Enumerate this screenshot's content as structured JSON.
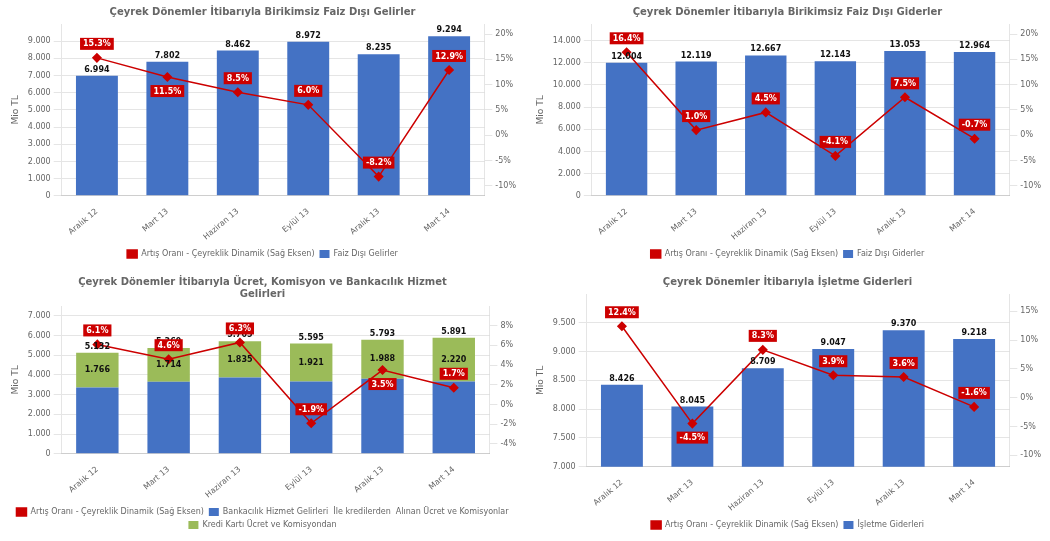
{
  "chart_data": [
    {
      "type": "bar",
      "title": "Çeyrek Dönemler İtibarıyla Birikimsiz Faiz Dışı Gelirler",
      "categories": [
        "Aralık 12",
        "Mart 13",
        "Haziran 13",
        "Eylül 13",
        "Aralık 13",
        "Mart 14"
      ],
      "series": [
        {
          "name": "Faiz Dışı Gelirler",
          "type": "bar",
          "color": "#4472C4",
          "values": [
            6994,
            7802,
            8462,
            8972,
            8235,
            9294
          ],
          "data_labels": true,
          "value_labels": [
            "6.994",
            "7.802",
            "8.462",
            "8.972",
            "8.235",
            "9.294"
          ]
        },
        {
          "name": "Artış Oranı - Çeyreklik Dinamik (Sağ Eksen)",
          "type": "line",
          "axis": "y2",
          "color": "#CC0000",
          "marker": "diamond",
          "values": [
            15.3,
            11.5,
            8.5,
            6.0,
            -8.2,
            12.9
          ],
          "data_labels": true,
          "value_labels": [
            "15.3%",
            "11.5%",
            "8.5%",
            "6.0%",
            "-8.2%",
            "12.9%"
          ]
        }
      ],
      "ylabel": "Mio TL",
      "ylim": [
        0,
        10000
      ],
      "yticks": [
        0,
        {
          "value": 1000,
          "label": "1.000"
        },
        {
          "value": 2000,
          "label": "2.000"
        },
        {
          "value": 3000,
          "label": "3.000"
        },
        {
          "value": 4000,
          "label": "4.000"
        },
        {
          "value": 5000,
          "label": "5.000"
        },
        {
          "value": 6000,
          "label": "6.000"
        },
        {
          "value": 7000,
          "label": "7.000"
        },
        {
          "value": 8000,
          "label": "8.000"
        },
        {
          "value": 9000,
          "label": "9.000"
        }
      ],
      "y2lim": [
        -12,
        22
      ],
      "y2ticks": [
        {
          "value": -10,
          "label": "-10%"
        },
        {
          "value": -5,
          "label": "-5%"
        },
        {
          "value": 0,
          "label": "0%"
        },
        {
          "value": 5,
          "label": "5%"
        },
        {
          "value": 10,
          "label": "10%"
        },
        {
          "value": 15,
          "label": "15%"
        },
        {
          "value": 20,
          "label": "20%"
        }
      ],
      "grid": "y",
      "legend": "bottom"
    },
    {
      "type": "bar",
      "title": "Çeyrek Dönemler İtibarıyla Birikimsiz Faiz Dışı Giderler",
      "categories": [
        "Aralık 12",
        "Mart 13",
        "Haziran 13",
        "Eylül 13",
        "Aralık 13",
        "Mart 14"
      ],
      "series": [
        {
          "name": "Faiz Dışı Giderler",
          "type": "bar",
          "color": "#4472C4",
          "values": [
            12004,
            12119,
            12667,
            12143,
            13053,
            12964
          ],
          "data_labels": true,
          "value_labels": [
            "12.004",
            "12.119",
            "12.667",
            "12.143",
            "13.053",
            "12.964"
          ]
        },
        {
          "name": "Artış Oranı - Çeyreklik Dinamik (Sağ Eksen)",
          "type": "line",
          "axis": "y2",
          "color": "#CC0000",
          "marker": "diamond",
          "values": [
            16.4,
            1.0,
            4.5,
            -4.1,
            7.5,
            -0.7
          ],
          "data_labels": true,
          "value_labels": [
            "16.4%",
            "1.0%",
            "4.5%",
            "-4.1%",
            "7.5%",
            "-0.7%"
          ]
        }
      ],
      "ylabel": "Mio TL",
      "ylim": [
        0,
        15500
      ],
      "yticks": [
        0,
        {
          "value": 2000,
          "label": "2.000"
        },
        {
          "value": 4000,
          "label": "4.000"
        },
        {
          "value": 6000,
          "label": "6.000"
        },
        {
          "value": 8000,
          "label": "8.000"
        },
        {
          "value": 10000,
          "label": "10.000"
        },
        {
          "value": 12000,
          "label": "12.000"
        },
        {
          "value": 14000,
          "label": "14.000"
        }
      ],
      "y2lim": [
        -12,
        22
      ],
      "y2ticks": [
        {
          "value": -10,
          "label": "-10%"
        },
        {
          "value": -5,
          "label": "-5%"
        },
        {
          "value": 0,
          "label": "0%"
        },
        {
          "value": 5,
          "label": "5%"
        },
        {
          "value": 10,
          "label": "10%"
        },
        {
          "value": 15,
          "label": "15%"
        },
        {
          "value": 20,
          "label": "20%"
        }
      ],
      "grid": "y",
      "legend": "bottom"
    },
    {
      "type": "bar",
      "title": "Çeyrek Dönemler İtibarıyla Ücret, Komisyon ve Bankacılık Hizmet\nGelirleri",
      "categories": [
        "Aralık 12",
        "Mart 13",
        "Haziran 13",
        "Eylül 13",
        "Aralık 13",
        "Mart 14"
      ],
      "stacked": true,
      "series": [
        {
          "name": "Bankacılık Hizmet Gelirleri  İle kredilerden  Alınan Ücret ve Komisyonlar",
          "type": "bar",
          "color": "#4472C4",
          "values": [
            3366,
            3655,
            3870,
            3674,
            3805,
            3671
          ],
          "data_labels": false
        },
        {
          "name": "Kredi Kartı Ücret ve Komisyondan",
          "type": "bar",
          "color": "#9BBB59",
          "values": [
            1766,
            1714,
            1835,
            1921,
            1988,
            2220
          ],
          "data_labels": true,
          "value_labels": [
            "1.766",
            "1.714",
            "1.835",
            "1.921",
            "1.988",
            "2.220"
          ]
        },
        {
          "name": "Artış Oranı - Çeyreklik Dinamik (Sağ Eksen)",
          "type": "line",
          "axis": "y2",
          "color": "#CC0000",
          "marker": "diamond",
          "values": [
            6.1,
            4.6,
            6.3,
            -1.9,
            3.5,
            1.7
          ],
          "data_labels": true,
          "value_labels": [
            "6.1%",
            "4.6%",
            "6.3%",
            "-1.9%",
            "3.5%",
            "1.7%"
          ]
        }
      ],
      "totals": [
        5132,
        5369,
        5705,
        5595,
        5793,
        5891
      ],
      "total_labels": [
        "5.132",
        "5.369",
        "5.705",
        "5.595",
        "5.793",
        "5.891"
      ],
      "ylabel": "Mio TL",
      "ylim": [
        0,
        7500
      ],
      "yticks": [
        0,
        {
          "value": 1000,
          "label": "1.000"
        },
        {
          "value": 2000,
          "label": "2.000"
        },
        {
          "value": 3000,
          "label": "3.000"
        },
        {
          "value": 4000,
          "label": "4.000"
        },
        {
          "value": 5000,
          "label": "5.000"
        },
        {
          "value": 6000,
          "label": "6.000"
        },
        {
          "value": 7000,
          "label": "7.000"
        }
      ],
      "y2lim": [
        -5,
        10
      ],
      "y2ticks": [
        {
          "value": -4,
          "label": "-4%"
        },
        {
          "value": -2,
          "label": "-2%"
        },
        {
          "value": 0,
          "label": "0%"
        },
        {
          "value": 2,
          "label": "2%"
        },
        {
          "value": 4,
          "label": "4%"
        },
        {
          "value": 6,
          "label": "6%"
        },
        {
          "value": 8,
          "label": "8%"
        }
      ],
      "grid": "y",
      "legend": "bottom"
    },
    {
      "type": "bar",
      "title": "Çeyrek Dönemler İtibarıyla İşletme Giderleri",
      "categories": [
        "Aralık 12",
        "Mart 13",
        "Haziran 13",
        "Eylül 13",
        "Aralık 13",
        "Mart 14"
      ],
      "series": [
        {
          "name": "İşletme Giderleri",
          "type": "bar",
          "color": "#4472C4",
          "values": [
            8426,
            8045,
            8709,
            9047,
            9370,
            9218
          ],
          "data_labels": true,
          "value_labels": [
            "8.426",
            "8.045",
            "8.709",
            "9.047",
            "9.370",
            "9.218"
          ]
        },
        {
          "name": "Artış Oranı - Çeyreklik Dinamik (Sağ Eksen)",
          "type": "line",
          "axis": "y2",
          "color": "#CC0000",
          "marker": "diamond",
          "values": [
            12.4,
            -4.5,
            8.3,
            3.9,
            3.6,
            -1.6
          ],
          "data_labels": true,
          "value_labels": [
            "12.4%",
            "-4.5%",
            "8.3%",
            "3.9%",
            "3.6%",
            "-1.6%"
          ]
        }
      ],
      "ylabel": "Mio TL",
      "ylim": [
        7000,
        10000
      ],
      "yticks": [
        {
          "value": 7000,
          "label": "7.000"
        },
        {
          "value": 7500,
          "label": "7.500"
        },
        {
          "value": 8000,
          "label": "8.000"
        },
        {
          "value": 8500,
          "label": "8.500"
        },
        {
          "value": 9000,
          "label": "9.000"
        },
        {
          "value": 9500,
          "label": "9.500"
        }
      ],
      "y2lim": [
        -12,
        18
      ],
      "y2ticks": [
        {
          "value": -10,
          "label": "-10%"
        },
        {
          "value": -5,
          "label": "-5%"
        },
        {
          "value": 0,
          "label": "0%"
        },
        {
          "value": 5,
          "label": "5%"
        },
        {
          "value": 10,
          "label": "10%"
        },
        {
          "value": 15,
          "label": "15%"
        }
      ],
      "grid": "y",
      "legend": "bottom"
    }
  ]
}
